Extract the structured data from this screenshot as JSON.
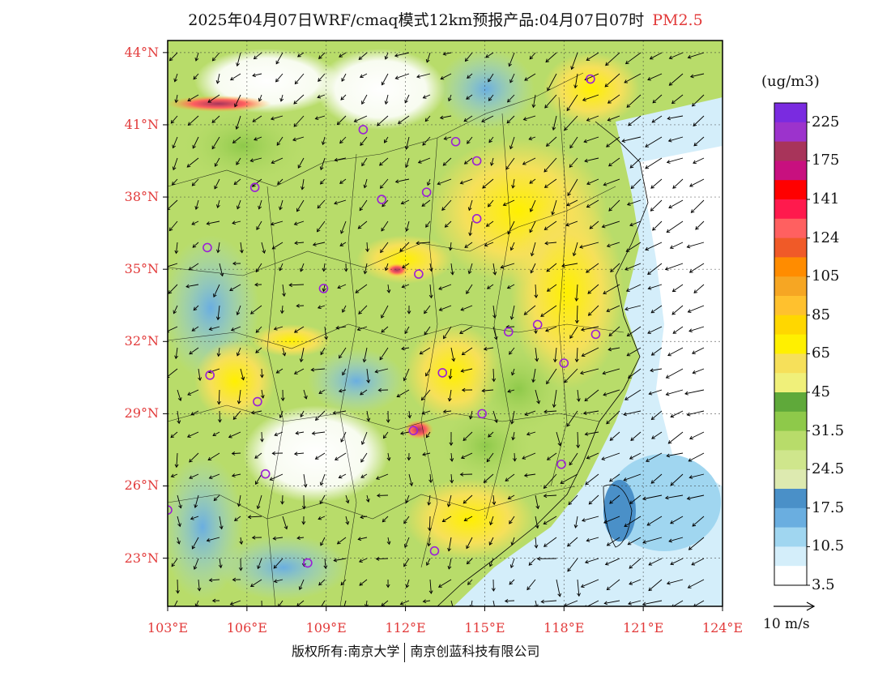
{
  "title": {
    "main": "2025年04月07日WRF/cmaq模式12km预报产品:04月07日07时",
    "pollutant": "PM2.5"
  },
  "axes": {
    "lat_labels": [
      "44°N",
      "41°N",
      "38°N",
      "35°N",
      "32°N",
      "29°N",
      "26°N",
      "23°N"
    ],
    "lat_values": [
      44,
      41,
      38,
      35,
      32,
      29,
      26,
      23
    ],
    "lon_labels": [
      "103°E",
      "106°E",
      "109°E",
      "112°E",
      "115°E",
      "118°E",
      "121°E",
      "124°E"
    ],
    "lon_values": [
      103,
      106,
      109,
      112,
      115,
      118,
      121,
      124
    ],
    "lat_range": [
      21,
      44.5
    ],
    "lon_range": [
      103,
      124
    ]
  },
  "colorbar": {
    "unit": "(ug/m3)",
    "labels": [
      "225",
      "175",
      "141",
      "124",
      "105",
      "85",
      "65",
      "45",
      "31.5",
      "24.5",
      "17.5",
      "10.5",
      "3.5"
    ],
    "colors": [
      "#7a2be0",
      "#9c33cc",
      "#a8345a",
      "#c8107f",
      "#ff0000",
      "#ff1a4d",
      "#ff6060",
      "#f05a28",
      "#ff8c00",
      "#f6a623",
      "#ffc12e",
      "#ffd700",
      "#fff000",
      "#f6e05a",
      "#f0f07a",
      "#5fa93a",
      "#8ec94a",
      "#b8dc6a",
      "#cfe68c",
      "#ddeab0",
      "#4a90c8",
      "#6aaee0",
      "#a0d6f0",
      "#d4eefa",
      "#ffffff"
    ]
  },
  "wind": {
    "scale_label": "10 m/s"
  },
  "footer": {
    "left": "版权所有:南京大学",
    "right": "南京创蓝科技有限公司"
  },
  "colors": {
    "axis_label": "#e23a3a",
    "station_marker": "#9b20d6"
  },
  "stations": [
    {
      "lon": 119.0,
      "lat": 42.9
    },
    {
      "lon": 110.4,
      "lat": 40.8
    },
    {
      "lon": 113.9,
      "lat": 40.3
    },
    {
      "lon": 114.7,
      "lat": 39.5
    },
    {
      "lon": 106.3,
      "lat": 38.4
    },
    {
      "lon": 111.1,
      "lat": 37.9
    },
    {
      "lon": 112.8,
      "lat": 38.2
    },
    {
      "lon": 114.7,
      "lat": 37.1
    },
    {
      "lon": 104.5,
      "lat": 35.9
    },
    {
      "lon": 112.5,
      "lat": 34.8
    },
    {
      "lon": 108.9,
      "lat": 34.2
    },
    {
      "lon": 115.9,
      "lat": 32.4
    },
    {
      "lon": 117.0,
      "lat": 32.7
    },
    {
      "lon": 119.2,
      "lat": 32.3
    },
    {
      "lon": 118.0,
      "lat": 31.1
    },
    {
      "lon": 104.6,
      "lat": 30.6
    },
    {
      "lon": 113.4,
      "lat": 30.7
    },
    {
      "lon": 106.4,
      "lat": 29.5
    },
    {
      "lon": 114.9,
      "lat": 29.0
    },
    {
      "lon": 112.3,
      "lat": 28.3
    },
    {
      "lon": 106.7,
      "lat": 26.5
    },
    {
      "lon": 117.9,
      "lat": 26.9
    },
    {
      "lon": 103.0,
      "lat": 25.0
    },
    {
      "lon": 108.3,
      "lat": 22.8
    },
    {
      "lon": 113.1,
      "lat": 23.3
    }
  ]
}
